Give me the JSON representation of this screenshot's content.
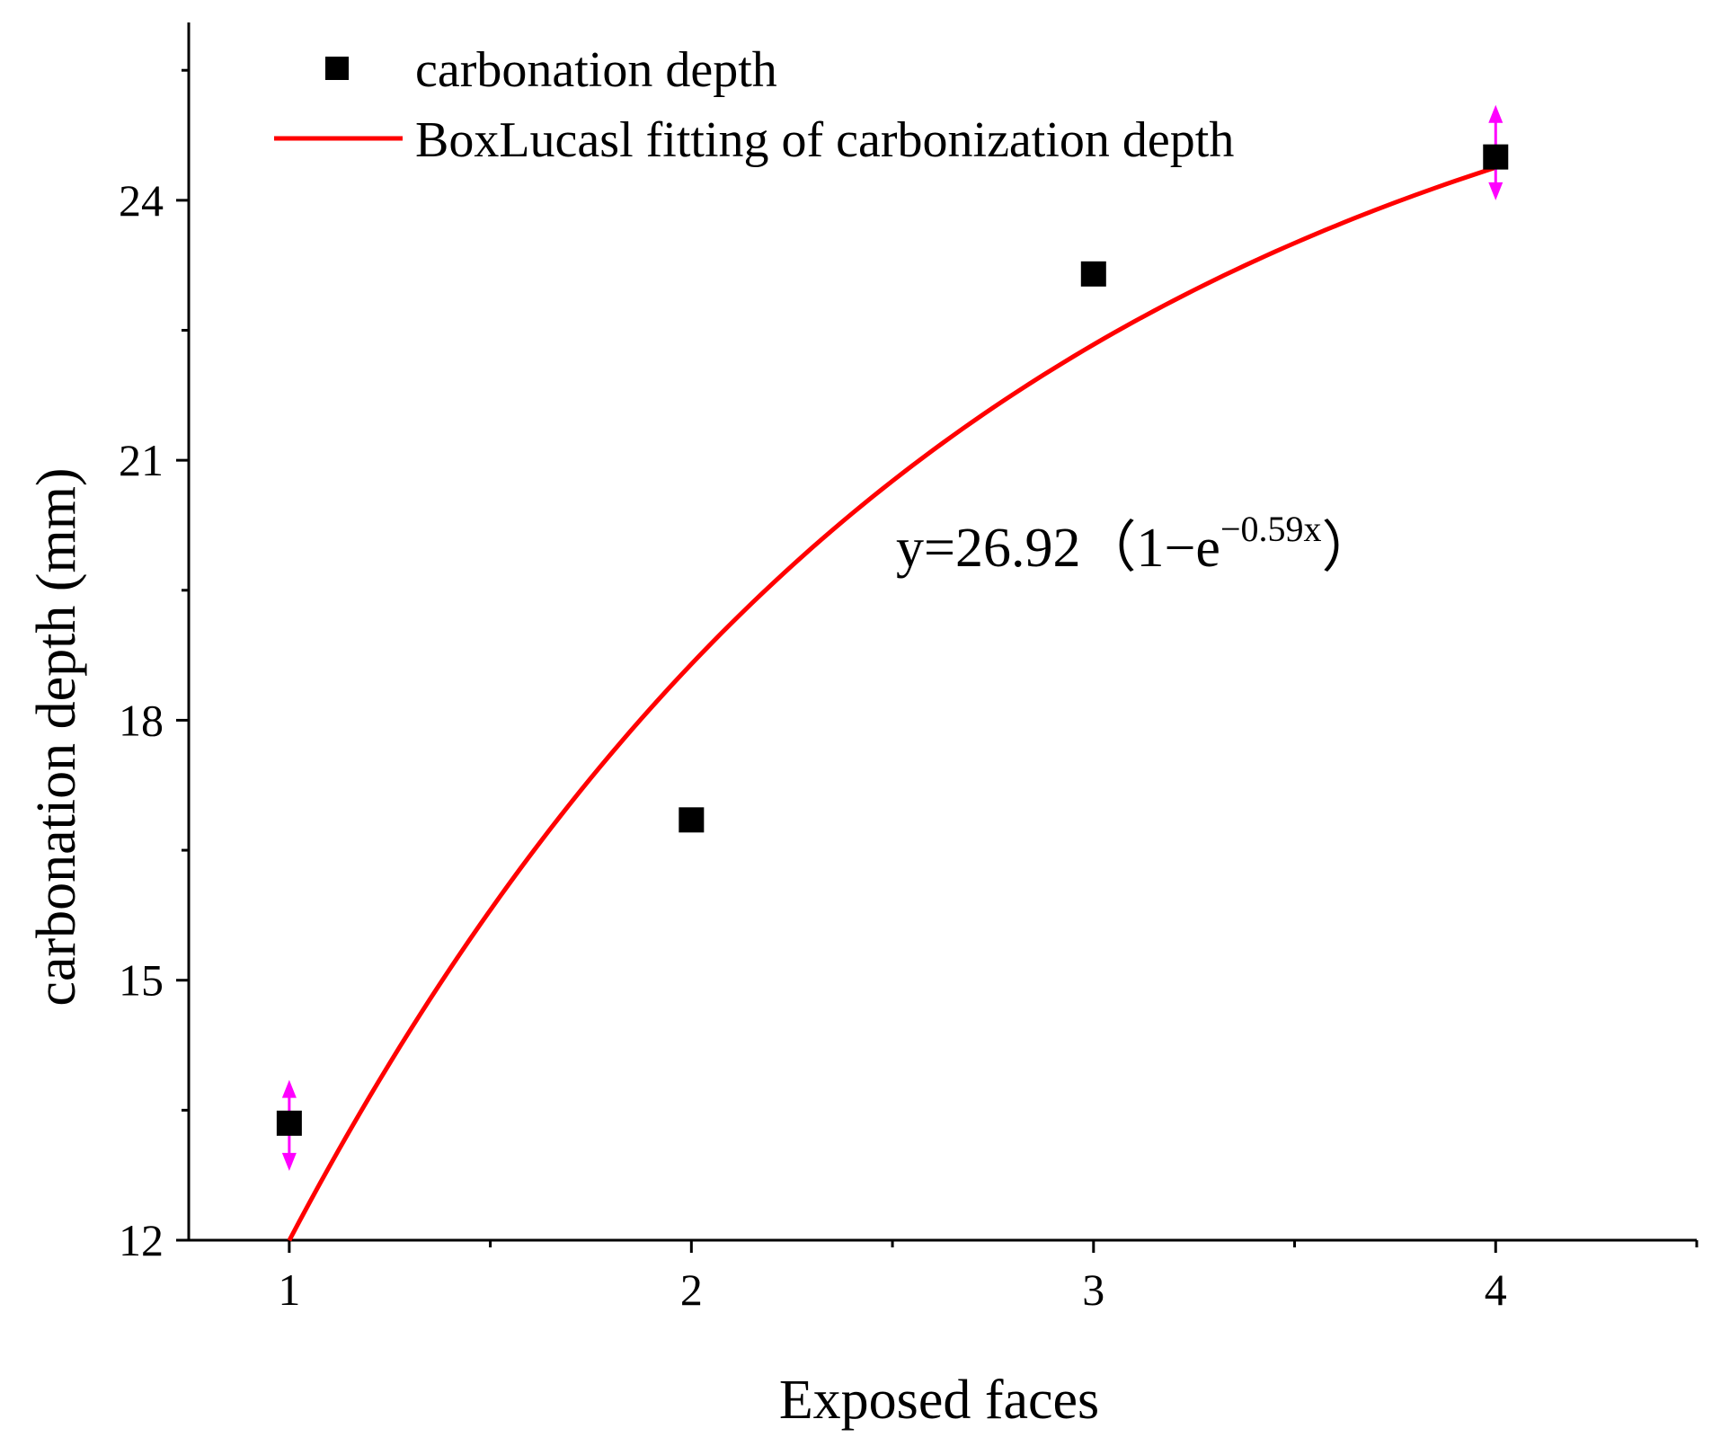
{
  "chart_data": {
    "type": "scatter",
    "xlabel": "Exposed faces",
    "ylabel": "carbonation depth (mm)",
    "xlim": [
      0.75,
      4.5
    ],
    "ylim": [
      12,
      26
    ],
    "x_ticks": [
      1,
      2,
      3,
      4
    ],
    "y_ticks": [
      12,
      15,
      18,
      21,
      24
    ],
    "grid": false,
    "legend_position": "top-left",
    "series": [
      {
        "name": "carbonation depth",
        "kind": "scatter",
        "marker": "square",
        "color": "#000000",
        "x": [
          1,
          2,
          3,
          4
        ],
        "y": [
          13.35,
          16.85,
          23.15,
          24.5
        ],
        "error_bars": [
          {
            "x": 1,
            "low": 12.8,
            "high": 13.85
          },
          {
            "x": 4,
            "low": 24.0,
            "high": 25.1
          }
        ],
        "error_color": "#ff00ff"
      },
      {
        "name": "BoxLucasl fitting of carbonization depth",
        "kind": "line",
        "color": "#ff0000",
        "model": {
          "a": 26.92,
          "b": 0.59
        },
        "x_range": [
          1,
          4
        ]
      }
    ],
    "annotation": {
      "prefix": "y=26.92（1−e",
      "exponent": "−0.59x",
      "suffix": "）"
    }
  }
}
